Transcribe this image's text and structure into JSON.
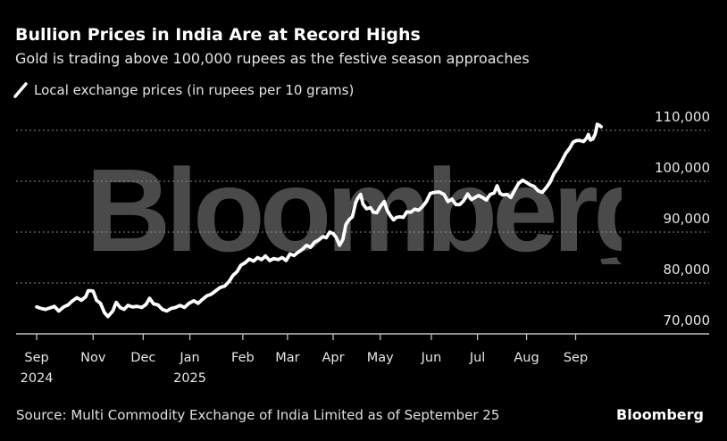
{
  "header": {
    "title": "Bullion Prices in India Are at Record Highs",
    "subtitle": "Gold is trading above 100,000 rupees as the festive season approaches"
  },
  "footer": {
    "source": "Source: Multi Commodity Exchange of India Limited as of September 25",
    "brand": "Bloomberg"
  },
  "watermark": "Bloomberg",
  "colors": {
    "background": "#000000",
    "line": "#ffffff",
    "grid": "#8a8a8a",
    "watermark": "#4a4a4a",
    "text": "#e6e6e6"
  },
  "chart_data": {
    "type": "line",
    "title": "Bullion Prices in India Are at Record Highs",
    "subtitle": "Gold is trading above 100,000 rupees as the festive season approaches",
    "xlabel": "",
    "ylabel": "",
    "ylim": [
      70000,
      112000
    ],
    "grid": true,
    "legend_position": "top-left",
    "yticks": [
      {
        "value": 70000,
        "label": "70,000"
      },
      {
        "value": 80000,
        "label": "80,000"
      },
      {
        "value": 90000,
        "label": "90,000"
      },
      {
        "value": 100000,
        "label": "100,000"
      },
      {
        "value": 110000,
        "label": "110,000"
      }
    ],
    "xticks": [
      {
        "month": 0,
        "label": "Sep",
        "sublabel": "2024"
      },
      {
        "month": 1.15,
        "label": "Nov",
        "sublabel": ""
      },
      {
        "month": 2.17,
        "label": "Dec",
        "sublabel": ""
      },
      {
        "month": 3.12,
        "label": "Jan",
        "sublabel": "2025"
      },
      {
        "month": 4.2,
        "label": "Feb",
        "sublabel": ""
      },
      {
        "month": 5.11,
        "label": "Mar",
        "sublabel": ""
      },
      {
        "month": 6.04,
        "label": "Apr",
        "sublabel": ""
      },
      {
        "month": 7.0,
        "label": "May",
        "sublabel": ""
      },
      {
        "month": 8.04,
        "label": "Jun",
        "sublabel": ""
      },
      {
        "month": 8.98,
        "label": "Jul",
        "sublabel": ""
      },
      {
        "month": 9.98,
        "label": "Aug",
        "sublabel": ""
      },
      {
        "month": 10.98,
        "label": "Sep",
        "sublabel": ""
      }
    ],
    "xlim": [
      -0.42,
      13.7
    ],
    "series": [
      {
        "name": "Local exchange prices (in rupees per 10 grams)",
        "points": [
          [
            0.0,
            75300
          ],
          [
            0.09,
            75000
          ],
          [
            0.18,
            74800
          ],
          [
            0.27,
            75100
          ],
          [
            0.36,
            75400
          ],
          [
            0.45,
            74500
          ],
          [
            0.55,
            75300
          ],
          [
            0.64,
            75700
          ],
          [
            0.73,
            76500
          ],
          [
            0.82,
            77100
          ],
          [
            0.91,
            76600
          ],
          [
            1.0,
            77300
          ],
          [
            1.05,
            78500
          ],
          [
            1.1,
            78500
          ],
          [
            1.15,
            78400
          ],
          [
            1.22,
            76600
          ],
          [
            1.3,
            76000
          ],
          [
            1.38,
            74200
          ],
          [
            1.45,
            73400
          ],
          [
            1.55,
            74500
          ],
          [
            1.62,
            76200
          ],
          [
            1.7,
            75200
          ],
          [
            1.78,
            74800
          ],
          [
            1.86,
            75600
          ],
          [
            1.95,
            75300
          ],
          [
            2.05,
            75400
          ],
          [
            2.14,
            75200
          ],
          [
            2.23,
            75800
          ],
          [
            2.3,
            77000
          ],
          [
            2.38,
            75900
          ],
          [
            2.47,
            75700
          ],
          [
            2.56,
            74800
          ],
          [
            2.65,
            74500
          ],
          [
            2.74,
            75000
          ],
          [
            2.83,
            75200
          ],
          [
            2.92,
            75600
          ],
          [
            3.01,
            75200
          ],
          [
            3.1,
            76000
          ],
          [
            3.2,
            76500
          ],
          [
            3.29,
            76000
          ],
          [
            3.38,
            76800
          ],
          [
            3.47,
            77500
          ],
          [
            3.56,
            77800
          ],
          [
            3.65,
            78500
          ],
          [
            3.74,
            79100
          ],
          [
            3.83,
            79400
          ],
          [
            3.92,
            80300
          ],
          [
            4.0,
            81500
          ],
          [
            4.08,
            82200
          ],
          [
            4.16,
            83500
          ],
          [
            4.25,
            84000
          ],
          [
            4.33,
            84700
          ],
          [
            4.42,
            84300
          ],
          [
            4.5,
            85000
          ],
          [
            4.58,
            84600
          ],
          [
            4.66,
            85300
          ],
          [
            4.75,
            84400
          ],
          [
            4.83,
            84800
          ],
          [
            4.92,
            84600
          ],
          [
            5.0,
            85000
          ],
          [
            5.08,
            84400
          ],
          [
            5.16,
            85700
          ],
          [
            5.24,
            85400
          ],
          [
            5.32,
            86000
          ],
          [
            5.41,
            86600
          ],
          [
            5.5,
            87400
          ],
          [
            5.58,
            87000
          ],
          [
            5.66,
            88000
          ],
          [
            5.75,
            88500
          ],
          [
            5.83,
            89100
          ],
          [
            5.9,
            88900
          ],
          [
            5.97,
            90000
          ],
          [
            6.04,
            89700
          ],
          [
            6.1,
            89000
          ],
          [
            6.17,
            87400
          ],
          [
            6.24,
            88600
          ],
          [
            6.3,
            91500
          ],
          [
            6.37,
            92500
          ],
          [
            6.43,
            93000
          ],
          [
            6.5,
            95800
          ],
          [
            6.55,
            96800
          ],
          [
            6.6,
            97400
          ],
          [
            6.65,
            95500
          ],
          [
            6.72,
            94600
          ],
          [
            6.8,
            94800
          ],
          [
            6.86,
            93900
          ],
          [
            6.93,
            93800
          ],
          [
            7.0,
            95000
          ],
          [
            7.08,
            96000
          ],
          [
            7.14,
            94300
          ],
          [
            7.2,
            93300
          ],
          [
            7.27,
            92400
          ],
          [
            7.33,
            92900
          ],
          [
            7.4,
            93000
          ],
          [
            7.47,
            92900
          ],
          [
            7.54,
            94000
          ],
          [
            7.62,
            93900
          ],
          [
            7.7,
            94500
          ],
          [
            7.78,
            94300
          ],
          [
            7.86,
            95000
          ],
          [
            7.94,
            96000
          ],
          [
            8.02,
            97600
          ],
          [
            8.1,
            97800
          ],
          [
            8.2,
            97900
          ],
          [
            8.3,
            97400
          ],
          [
            8.38,
            96000
          ],
          [
            8.46,
            96500
          ],
          [
            8.54,
            95400
          ],
          [
            8.62,
            95400
          ],
          [
            8.7,
            96200
          ],
          [
            8.78,
            97500
          ],
          [
            8.86,
            96400
          ],
          [
            8.93,
            96800
          ],
          [
            9.0,
            97200
          ],
          [
            9.08,
            96800
          ],
          [
            9.16,
            96300
          ],
          [
            9.24,
            97400
          ],
          [
            9.32,
            97700
          ],
          [
            9.38,
            99100
          ],
          [
            9.44,
            97600
          ],
          [
            9.5,
            97300
          ],
          [
            9.58,
            97400
          ],
          [
            9.66,
            96800
          ],
          [
            9.74,
            98300
          ],
          [
            9.82,
            99600
          ],
          [
            9.9,
            100200
          ],
          [
            9.97,
            99800
          ],
          [
            10.05,
            99300
          ],
          [
            10.13,
            99000
          ],
          [
            10.22,
            98100
          ],
          [
            10.3,
            97800
          ],
          [
            10.38,
            98700
          ],
          [
            10.46,
            99800
          ],
          [
            10.54,
            101500
          ],
          [
            10.62,
            102600
          ],
          [
            10.7,
            104000
          ],
          [
            10.78,
            105500
          ],
          [
            10.86,
            106500
          ],
          [
            10.93,
            107700
          ],
          [
            11.0,
            108000
          ],
          [
            11.07,
            108000
          ],
          [
            11.14,
            107800
          ],
          [
            11.2,
            108400
          ],
          [
            11.24,
            109200
          ],
          [
            11.28,
            108100
          ],
          [
            11.33,
            108300
          ],
          [
            11.38,
            109300
          ],
          [
            11.42,
            111200
          ],
          [
            11.46,
            111000
          ],
          [
            11.5,
            110700
          ]
        ]
      }
    ]
  }
}
